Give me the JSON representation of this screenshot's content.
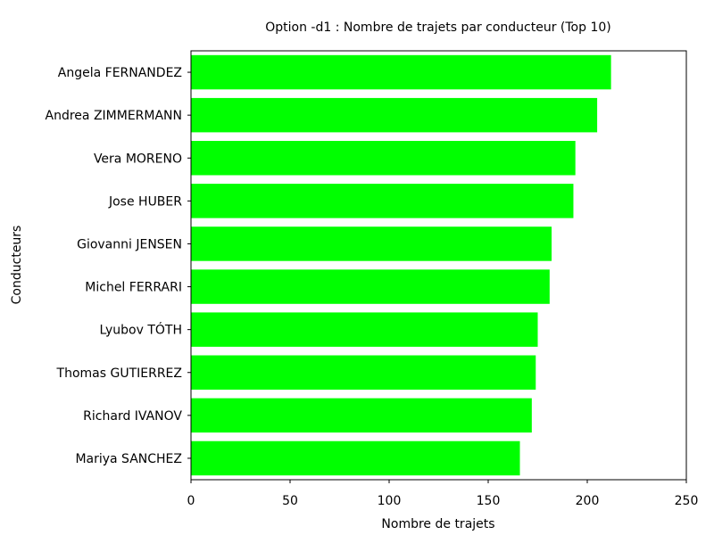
{
  "chart_data": {
    "type": "bar",
    "orientation": "horizontal",
    "title": "Option -d1 : Nombre de trajets par conducteur (Top 10)",
    "xlabel": "Nombre de trajets",
    "ylabel": "Conducteurs",
    "categories": [
      "Angela FERNANDEZ",
      "Andrea ZIMMERMANN",
      "Vera MORENO",
      "Jose HUBER",
      "Giovanni JENSEN",
      "Michel FERRARI",
      "Lyubov TÓTH",
      "Thomas GUTIERREZ",
      "Richard IVANOV",
      "Mariya SANCHEZ"
    ],
    "values": [
      212,
      205,
      194,
      193,
      182,
      181,
      175,
      174,
      172,
      166
    ],
    "xlim": [
      0,
      250
    ],
    "xticks": [
      0,
      50,
      100,
      150,
      200,
      250
    ],
    "bar_color": "#00ff00",
    "grid": false
  }
}
